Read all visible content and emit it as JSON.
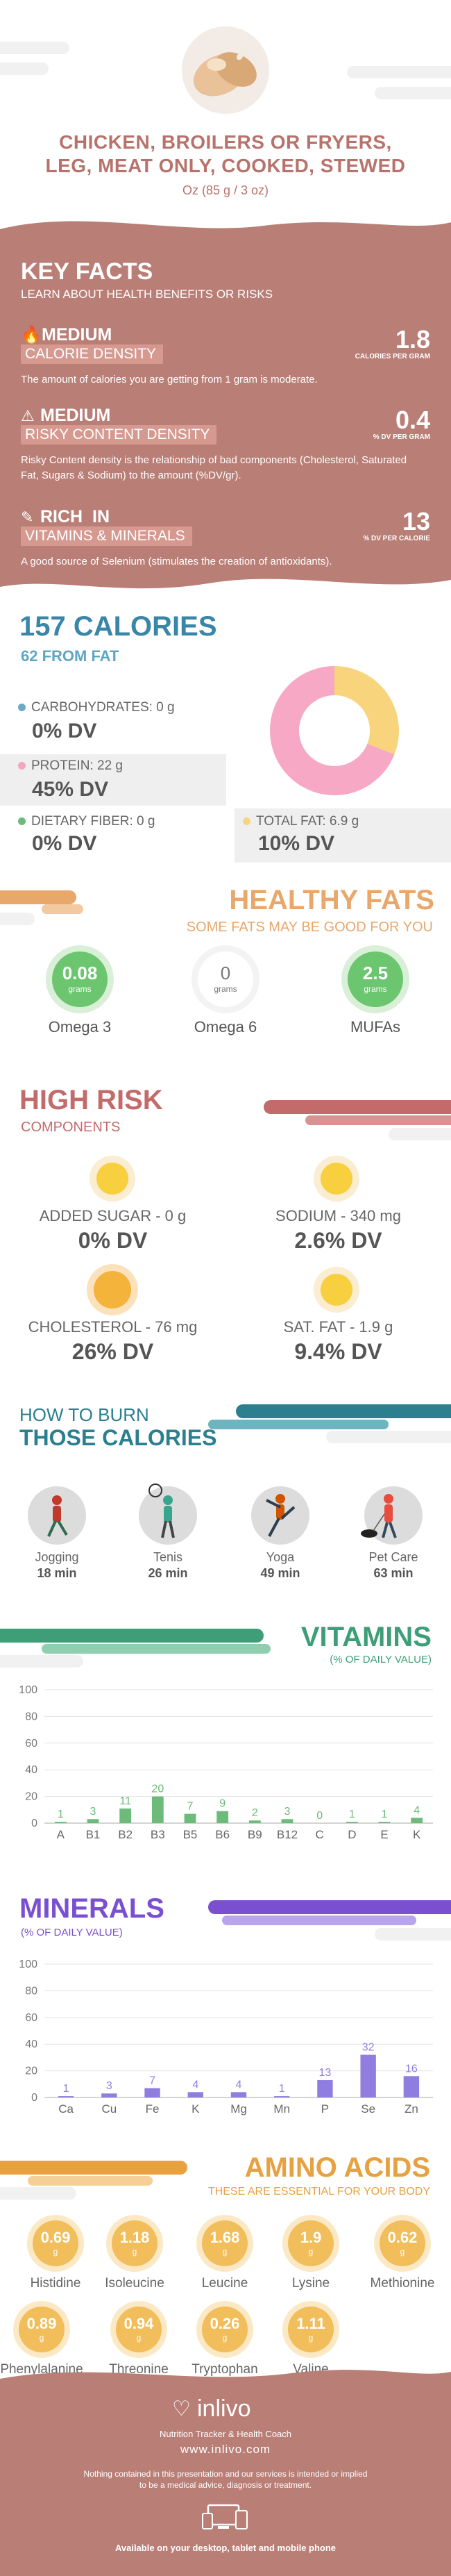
{
  "header": {
    "title_line1": "CHICKEN, BROILERS OR FRYERS,",
    "title_line2": "LEG, MEAT ONLY, COOKED, STEWED",
    "serving": "Oz (85 g / 3 oz)"
  },
  "key_facts": {
    "heading": "KEY FACTS",
    "subheading": "LEARN ABOUT HEALTH BENEFITS OR RISKS",
    "items": [
      {
        "level": "MEDIUM",
        "label": "CALORIE DENSITY",
        "desc": "The amount of calories you are getting from 1 gram is moderate.",
        "value": "1.8",
        "unit": "CALORIES PER GRAM"
      },
      {
        "level": "MEDIUM",
        "label": "RISKY CONTENT DENSITY",
        "desc": "Risky Content density is the relationship of bad components (Cholesterol, Saturated Fat, Sugars & Sodium) to the amount (%DV/gr).",
        "value": "0.4",
        "unit": "% DV PER GRAM"
      },
      {
        "level": "RICH  IN",
        "label": "VITAMINS & MINERALS",
        "desc": "A good source of Selenium (stimulates the creation of antioxidants).",
        "value": "13",
        "unit": "% DV PER CALORIE"
      }
    ]
  },
  "calories": {
    "heading": "157 CALORIES",
    "from_fat": "62 FROM FAT",
    "carbs_label": "CARBOHYDRATES: 0 g",
    "carbs_dv": "0% DV",
    "protein_label": "PROTEIN: 22 g",
    "protein_dv": "45% DV",
    "fiber_label": "DIETARY FIBER: 0 g",
    "fiber_dv": "0% DV",
    "fat_label": "TOTAL FAT: 6.9 g",
    "fat_dv": "10% DV",
    "donut": {
      "protein_share": 0.69,
      "fat_share": 0.31,
      "protein_color": "#f7a8c4",
      "fat_color": "#f8d57d"
    }
  },
  "healthy_fats": {
    "heading": "HEALTHY FATS",
    "subheading": "SOME FATS MAY BE GOOD FOR YOU",
    "items": [
      {
        "value": "0.08",
        "unit": "grams",
        "name": "Omega 3"
      },
      {
        "value": "0",
        "unit": "grams",
        "name": "Omega 6"
      },
      {
        "value": "2.5",
        "unit": "grams",
        "name": "MUFAs"
      }
    ]
  },
  "high_risk": {
    "heading": "HIGH RISK",
    "subheading": "COMPONENTS",
    "items": [
      {
        "label": "ADDED SUGAR - 0 g",
        "dv": "0% DV"
      },
      {
        "label": "SODIUM - 340 mg",
        "dv": "2.6% DV"
      },
      {
        "label": "CHOLESTEROL - 76 mg",
        "dv": "26% DV"
      },
      {
        "label": "SAT. FAT - 1.9 g",
        "dv": "9.4% DV"
      }
    ]
  },
  "burn": {
    "heading1": "HOW TO BURN",
    "heading2": "THOSE CALORIES",
    "items": [
      {
        "name": "Jogging",
        "time": "18 min"
      },
      {
        "name": "Tenis",
        "time": "26 min"
      },
      {
        "name": "Yoga",
        "time": "49 min"
      },
      {
        "name": "Pet Care",
        "time": "63 min"
      }
    ]
  },
  "vitamins": {
    "heading": "VITAMINS",
    "subheading": "(% OF DAILY VALUE)"
  },
  "minerals": {
    "heading": "MINERALS",
    "subheading": "(% OF DAILY VALUE)"
  },
  "chart_data": [
    {
      "type": "bar",
      "categories": [
        "A",
        "B1",
        "B2",
        "B3",
        "B5",
        "B6",
        "B9",
        "B12",
        "C",
        "D",
        "E",
        "K"
      ],
      "values": [
        1,
        3,
        11,
        20,
        7,
        9,
        2,
        3,
        0,
        1,
        1,
        4
      ],
      "ylim": [
        0,
        100
      ],
      "yticks": [
        0,
        20,
        40,
        60,
        80,
        100
      ],
      "color": "#6dbb7a"
    },
    {
      "type": "bar",
      "categories": [
        "Ca",
        "Cu",
        "Fe",
        "K",
        "Mg",
        "Mn",
        "P",
        "Se",
        "Zn"
      ],
      "values": [
        1,
        3,
        7,
        4,
        4,
        1,
        13,
        32,
        16
      ],
      "ylim": [
        0,
        100
      ],
      "yticks": [
        0,
        20,
        40,
        60,
        80,
        100
      ],
      "color": "#8f7ee0"
    }
  ],
  "amino": {
    "heading": "AMINO ACIDS",
    "subheading": "THESE ARE ESSENTIAL FOR YOUR BODY",
    "row1": [
      {
        "value": "0.69",
        "unit": "g",
        "name": "Histidine"
      },
      {
        "value": "1.18",
        "unit": "g",
        "name": "Isoleucine"
      },
      {
        "value": "1.68",
        "unit": "g",
        "name": "Leucine"
      },
      {
        "value": "1.9",
        "unit": "g",
        "name": "Lysine"
      },
      {
        "value": "0.62",
        "unit": "g",
        "name": "Methionine"
      }
    ],
    "row2": [
      {
        "value": "0.89",
        "unit": "g",
        "name": "Phenylalanine"
      },
      {
        "value": "0.94",
        "unit": "g",
        "name": "Threonine"
      },
      {
        "value": "0.26",
        "unit": "g",
        "name": "Tryptophan"
      },
      {
        "value": "1.11",
        "unit": "g",
        "name": "Valine"
      }
    ]
  },
  "footer": {
    "brand": "inlivo",
    "tagline": "Nutrition Tracker & Health Coach",
    "url": "www.inlivo.com",
    "disclaimer1": "Nothing contained in this presentation and our services is intended or implied",
    "disclaimer2": "to be a medical advice, diagnosis or treatment.",
    "available": "Available on your desktop, tablet and mobile phone"
  },
  "colors": {
    "brand": "#b7736b",
    "calories_blue": "#3a86a8",
    "fats_orange": "#e8a76b",
    "risk_red": "#c36a6a",
    "burn_teal": "#2b7f8f",
    "vitamin_green": "#3d9e78",
    "mineral_purple": "#7a4fd0",
    "amino_orange": "#e7a13f"
  }
}
